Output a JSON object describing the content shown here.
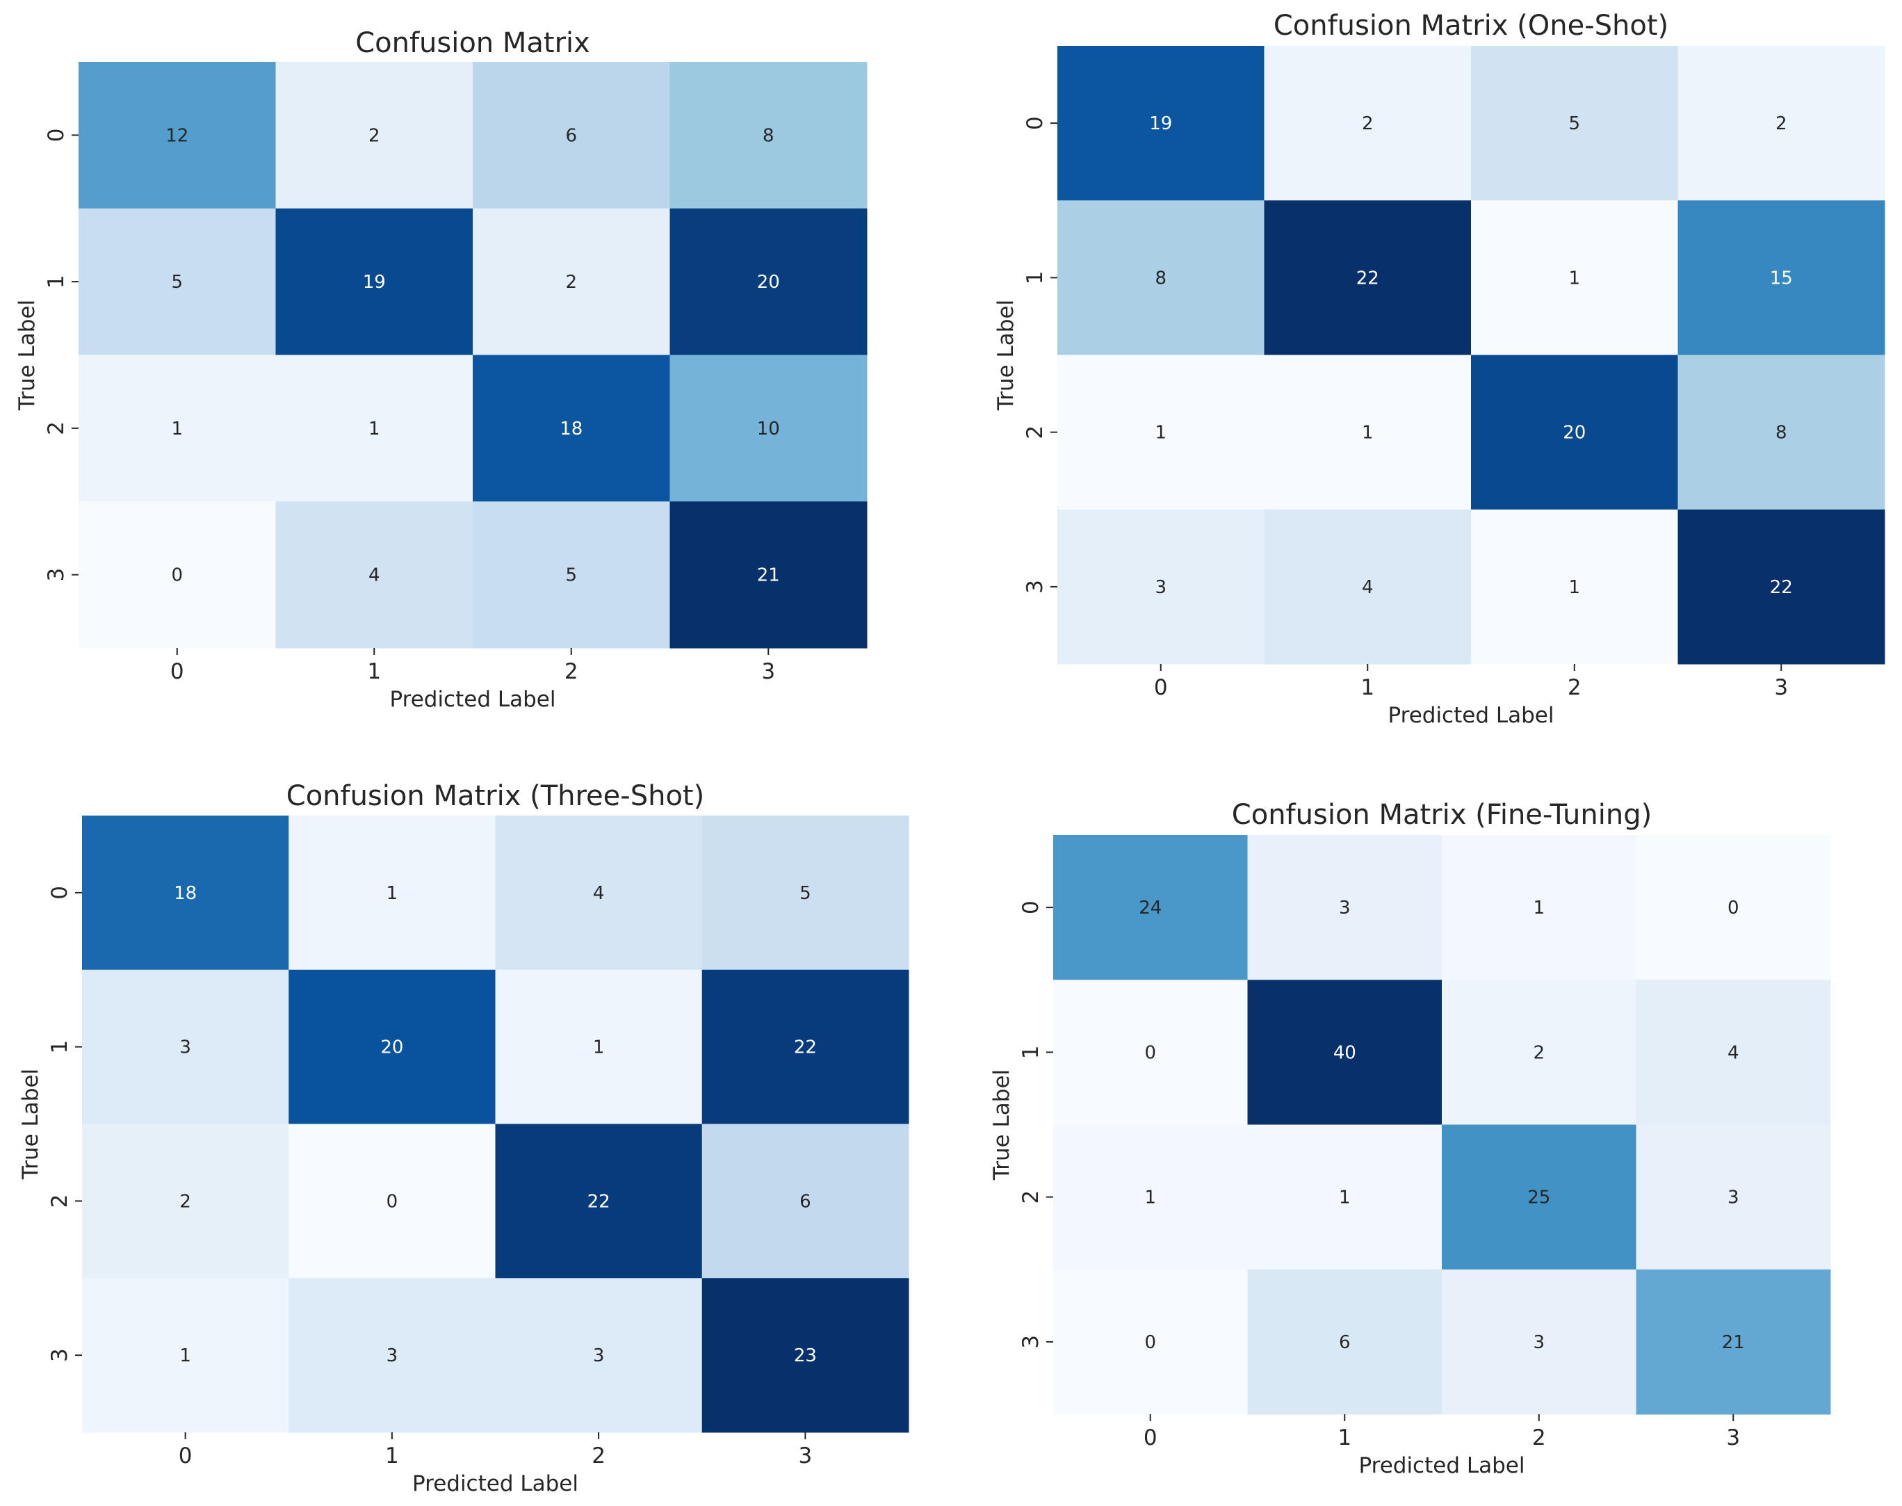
{
  "chart_data": [
    {
      "type": "heatmap",
      "title": "Confusion Matrix",
      "xlabel": "Predicted Label",
      "ylabel": "True Label",
      "x_ticks": [
        "0",
        "1",
        "2",
        "3"
      ],
      "y_ticks": [
        "0",
        "1",
        "2",
        "3"
      ],
      "matrix": [
        [
          12,
          2,
          6,
          8
        ],
        [
          5,
          19,
          2,
          20
        ],
        [
          1,
          1,
          18,
          10
        ],
        [
          0,
          4,
          5,
          21
        ]
      ],
      "colormap": "Blues",
      "vmin": 0,
      "vmax": 21
    },
    {
      "type": "heatmap",
      "title": "Confusion Matrix (One-Shot)",
      "xlabel": "Predicted Label",
      "ylabel": "True Label",
      "x_ticks": [
        "0",
        "1",
        "2",
        "3"
      ],
      "y_ticks": [
        "0",
        "1",
        "2",
        "3"
      ],
      "matrix": [
        [
          19,
          2,
          5,
          2
        ],
        [
          8,
          22,
          1,
          15
        ],
        [
          1,
          1,
          20,
          8
        ],
        [
          3,
          4,
          1,
          22
        ]
      ],
      "colormap": "Blues",
      "vmin": 1,
      "vmax": 22
    },
    {
      "type": "heatmap",
      "title": "Confusion Matrix (Three-Shot)",
      "xlabel": "Predicted Label",
      "ylabel": "True Label",
      "x_ticks": [
        "0",
        "1",
        "2",
        "3"
      ],
      "y_ticks": [
        "0",
        "1",
        "2",
        "3"
      ],
      "matrix": [
        [
          18,
          1,
          4,
          5
        ],
        [
          3,
          20,
          1,
          22
        ],
        [
          2,
          0,
          22,
          6
        ],
        [
          1,
          3,
          3,
          23
        ]
      ],
      "colormap": "Blues",
      "vmin": 0,
      "vmax": 23
    },
    {
      "type": "heatmap",
      "title": "Confusion Matrix (Fine-Tuning)",
      "xlabel": "Predicted Label",
      "ylabel": "True Label",
      "x_ticks": [
        "0",
        "1",
        "2",
        "3"
      ],
      "y_ticks": [
        "0",
        "1",
        "2",
        "3"
      ],
      "matrix": [
        [
          24,
          3,
          1,
          0
        ],
        [
          0,
          40,
          2,
          4
        ],
        [
          1,
          1,
          25,
          3
        ],
        [
          0,
          6,
          3,
          21
        ]
      ],
      "colormap": "Blues",
      "vmin": 0,
      "vmax": 40
    }
  ]
}
